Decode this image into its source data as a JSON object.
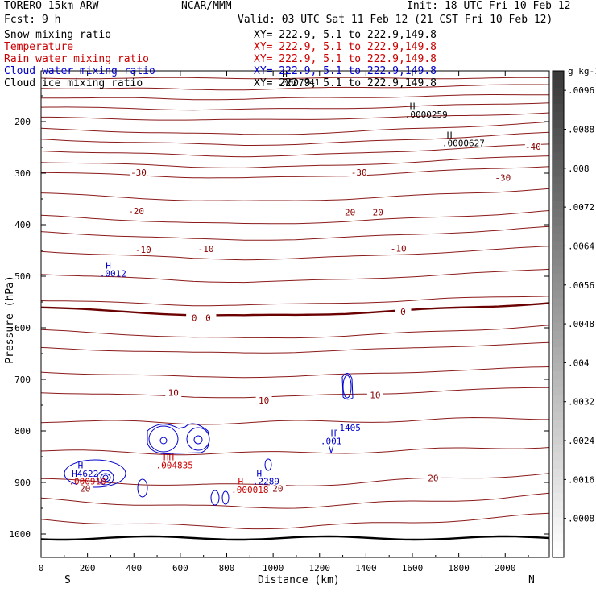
{
  "header": {
    "model": "TORERO  15km ARW",
    "org": "NCAR/MMM",
    "init": "Init: 18 UTC Fri 10 Feb 12",
    "fcst": "Fcst:    9 h",
    "valid": "Valid: 03 UTC Sat 11 Feb 12 (21 CST Fri 10 Feb 12)"
  },
  "legend": [
    {
      "label": "Snow mixing ratio",
      "xy": "XY= 222.9,  5.1 to 222.9,149.8",
      "color": "#000000"
    },
    {
      "label": "Temperature",
      "xy": "XY= 222.9,  5.1 to 222.9,149.8",
      "color": "#cc0000"
    },
    {
      "label": "Rain water mixing ratio",
      "xy": "XY= 222.9,  5.1 to 222.9,149.8",
      "color": "#cc0000"
    },
    {
      "label": "Cloud water mixing ratio",
      "xy": "XY= 222.9,  5.1 to 222.9,149.8",
      "color": "#0000cc"
    },
    {
      "label": "Cloud ice mixing ratio",
      "xy": "XY= 222.9,  5.1 to 222.9,149.8",
      "color": "#000000"
    }
  ],
  "chart_data": {
    "type": "contour-cross-section",
    "xlabel": "Distance (km)",
    "ylabel": "Pressure (hPa)",
    "xlim": [
      0,
      2190
    ],
    "x_ticks": [
      0,
      200,
      400,
      600,
      800,
      1000,
      1200,
      1400,
      1600,
      1800,
      2000
    ],
    "ylim": [
      1050,
      100
    ],
    "y_ticks": [
      200,
      300,
      400,
      500,
      600,
      700,
      800,
      900,
      1000
    ],
    "direction_left": "S",
    "direction_right": "N",
    "temperature_labels": [
      {
        "text": "-40",
        "x": 2120,
        "p": 255
      },
      {
        "text": "-30",
        "x": 420,
        "p": 305
      },
      {
        "text": "-30",
        "x": 1370,
        "p": 305
      },
      {
        "text": "-30",
        "x": 1990,
        "p": 315
      },
      {
        "text": "-20",
        "x": 410,
        "p": 380
      },
      {
        "text": "-20",
        "x": 1320,
        "p": 382
      },
      {
        "text": "-20",
        "x": 1440,
        "p": 382
      },
      {
        "text": "-10",
        "x": 440,
        "p": 455
      },
      {
        "text": "-10",
        "x": 710,
        "p": 453
      },
      {
        "text": "-10",
        "x": 1540,
        "p": 452
      },
      {
        "text": "0",
        "x": 660,
        "p": 587
      },
      {
        "text": "0",
        "x": 720,
        "p": 587
      },
      {
        "text": "0",
        "x": 1560,
        "p": 575
      },
      {
        "text": "10",
        "x": 570,
        "p": 732
      },
      {
        "text": "10",
        "x": 960,
        "p": 747
      },
      {
        "text": "10",
        "x": 1440,
        "p": 737
      },
      {
        "text": "20",
        "x": 190,
        "p": 918
      },
      {
        "text": "20",
        "x": 1020,
        "p": 918
      },
      {
        "text": "20",
        "x": 1690,
        "p": 898
      }
    ],
    "maxima_labels": [
      {
        "text": "H",
        "color": "#000000",
        "x": 1050,
        "p": 114
      },
      {
        "text": ".0007241",
        "color": "#000000",
        "x": 1110,
        "p": 130
      },
      {
        "text": "H",
        "color": "#000000",
        "x": 1600,
        "p": 176
      },
      {
        "text": ".0000259",
        "color": "#000000",
        "x": 1660,
        "p": 192
      },
      {
        "text": "H",
        "color": "#000000",
        "x": 1760,
        "p": 232
      },
      {
        "text": ".0000627",
        "color": "#000000",
        "x": 1820,
        "p": 248
      },
      {
        "text": "H",
        "color": "#0000cc",
        "x": 290,
        "p": 485
      },
      {
        "text": ".0012",
        "color": "#0000cc",
        "x": 310,
        "p": 501
      },
      {
        "text": "H",
        "color": "#0000cc",
        "x": 1260,
        "p": 810
      },
      {
        "text": ".1405",
        "color": "#0000cc",
        "x": 1320,
        "p": 800
      },
      {
        "text": ".001",
        "color": "#0000cc",
        "x": 1250,
        "p": 826
      },
      {
        "text": "V",
        "color": "#0000cc",
        "x": 1250,
        "p": 842
      },
      {
        "text": "HH",
        "color": "#cc0000",
        "x": 550,
        "p": 857
      },
      {
        "text": ".004835",
        "color": "#cc0000",
        "x": 575,
        "p": 873
      },
      {
        "text": "H",
        "color": "#0000cc",
        "x": 170,
        "p": 873
      },
      {
        "text": "H4622",
        "color": "#0000cc",
        "x": 190,
        "p": 889
      },
      {
        "text": ".000910",
        "color": "#cc0000",
        "x": 200,
        "p": 904
      },
      {
        "text": "H",
        "color": "#0000cc",
        "x": 940,
        "p": 888
      },
      {
        "text": ".2289",
        "color": "#0000cc",
        "x": 970,
        "p": 904
      },
      {
        "text": "H",
        "color": "#cc0000",
        "x": 860,
        "p": 904
      },
      {
        "text": ".000018",
        "color": "#cc0000",
        "x": 900,
        "p": 920
      }
    ],
    "colorbar": {
      "unit": "g kg-1",
      "labels": [
        ".0096",
        ".0088",
        ".008",
        ".0072",
        ".0064",
        ".0056",
        ".0048",
        ".004",
        ".0032",
        ".0024",
        ".0016",
        ".0008"
      ],
      "max_value": 0.01
    }
  }
}
